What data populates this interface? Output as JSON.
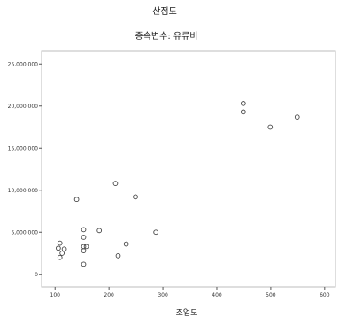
{
  "chart_data": {
    "type": "scatter",
    "title": "산점도",
    "subtitle": "종속변수: 유류비",
    "xlabel": "조업도",
    "ylabel": "",
    "xlim": [
      75,
      620
    ],
    "ylim": [
      -1500000,
      26500000
    ],
    "xticks": [
      100,
      200,
      300,
      400,
      500,
      600
    ],
    "xtick_labels": [
      "100",
      "200",
      "300",
      "400",
      "500",
      "600"
    ],
    "yticks": [
      0,
      5000000,
      10000000,
      15000000,
      20000000,
      25000000
    ],
    "ytick_labels": [
      "0",
      "5,000,000",
      "10,000,000",
      "15,000,000",
      "20,000,000",
      "25,000,000"
    ],
    "grid": false,
    "points": [
      {
        "x": 109,
        "y": 3700000
      },
      {
        "x": 106,
        "y": 3100000
      },
      {
        "x": 117,
        "y": 3000000
      },
      {
        "x": 113,
        "y": 2500000
      },
      {
        "x": 109,
        "y": 2000000
      },
      {
        "x": 140,
        "y": 8900000
      },
      {
        "x": 153,
        "y": 5300000
      },
      {
        "x": 153,
        "y": 4400000
      },
      {
        "x": 153,
        "y": 3300000
      },
      {
        "x": 158,
        "y": 3300000
      },
      {
        "x": 153,
        "y": 2800000
      },
      {
        "x": 153,
        "y": 1200000
      },
      {
        "x": 182,
        "y": 5200000
      },
      {
        "x": 212,
        "y": 10800000
      },
      {
        "x": 217,
        "y": 2200000
      },
      {
        "x": 232,
        "y": 3600000
      },
      {
        "x": 249,
        "y": 9200000
      },
      {
        "x": 287,
        "y": 5000000
      },
      {
        "x": 449,
        "y": 20300000
      },
      {
        "x": 449,
        "y": 19300000
      },
      {
        "x": 499,
        "y": 17500000
      },
      {
        "x": 549,
        "y": 18700000
      }
    ]
  }
}
